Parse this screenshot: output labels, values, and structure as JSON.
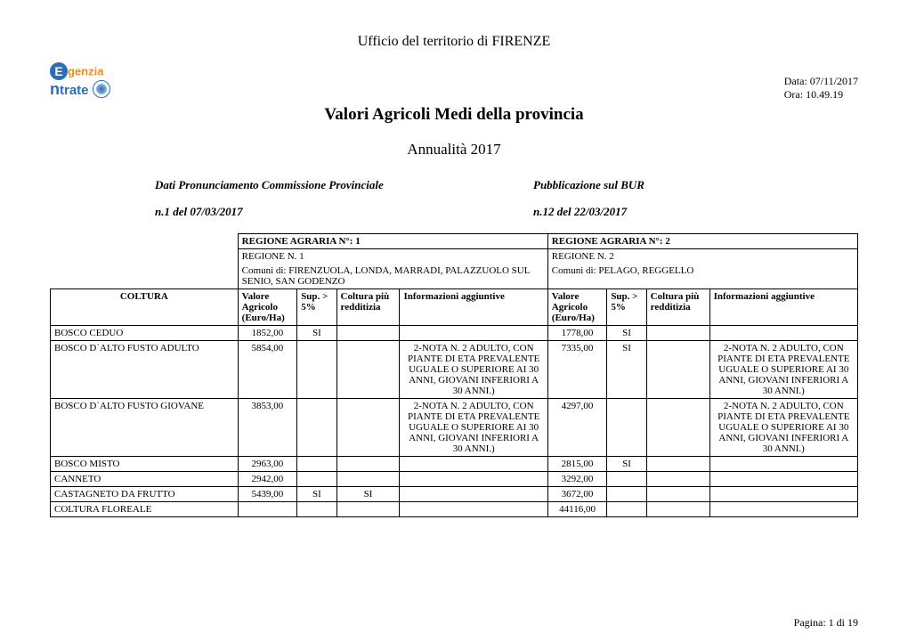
{
  "header": {
    "office": "Ufficio del territorio di  FIRENZE",
    "date_label": "Data: ",
    "date": "07/11/2017",
    "time_label": "Ora: ",
    "time": "10.49.19",
    "title": "Valori Agricoli Medi della provincia",
    "subtitle": "Annualità  2017"
  },
  "logo": {
    "e": "E",
    "line1": "genzia",
    "line2a": "n",
    "line2b": "trate"
  },
  "mid": {
    "left_label": "Dati Pronunciamento Commissione Provinciale",
    "left_value": "n.1 del  07/03/2017",
    "right_label": "Pubblicazione sul BUR",
    "right_value": "n.12  del 22/03/2017"
  },
  "table": {
    "regions": [
      {
        "head": "REGIONE AGRARIA N°:  1",
        "name": "REGIONE N. 1",
        "comuni": "Comuni di: FIRENZUOLA, LONDA, MARRADI, PALAZZUOLO SUL SENIO, SAN GODENZO"
      },
      {
        "head": "REGIONE AGRARIA N°:  2",
        "name": "REGIONE N. 2",
        "comuni": "Comuni di: PELAGO, REGGELLO"
      }
    ],
    "col_headers": {
      "coltura": "COLTURA",
      "valore": "Valore Agricolo (Euro/Ha)",
      "sup": "Sup. > 5%",
      "redd": "Coltura più redditizia",
      "info": "Informazioni aggiuntive"
    },
    "note2": "2-NOTA N. 2 ADULTO, CON PIANTE DI ETA PREVALENTE UGUALE O SUPERIORE AI 30 ANNI, GIOVANI INFERIORI A 30 ANNI.)",
    "rows": [
      {
        "coltura": "BOSCO CEDUO",
        "r1_val": "1852,00",
        "r1_sup": "SI",
        "r1_redd": "",
        "r1_info": "",
        "r2_val": "1778,00",
        "r2_sup": "SI",
        "r2_redd": "",
        "r2_info": ""
      },
      {
        "coltura": "BOSCO D`ALTO FUSTO ADULTO",
        "r1_val": "5854,00",
        "r1_sup": "",
        "r1_redd": "",
        "r1_info": "NOTE2",
        "r2_val": "7335,00",
        "r2_sup": "SI",
        "r2_redd": "",
        "r2_info": "NOTE2"
      },
      {
        "coltura": "BOSCO D`ALTO FUSTO GIOVANE",
        "r1_val": "3853,00",
        "r1_sup": "",
        "r1_redd": "",
        "r1_info": "NOTE2",
        "r2_val": "4297,00",
        "r2_sup": "",
        "r2_redd": "",
        "r2_info": "NOTE2"
      },
      {
        "coltura": "BOSCO MISTO",
        "r1_val": "2963,00",
        "r1_sup": "",
        "r1_redd": "",
        "r1_info": "",
        "r2_val": "2815,00",
        "r2_sup": "SI",
        "r2_redd": "",
        "r2_info": ""
      },
      {
        "coltura": "CANNETO",
        "r1_val": "2942,00",
        "r1_sup": "",
        "r1_redd": "",
        "r1_info": "",
        "r2_val": "3292,00",
        "r2_sup": "",
        "r2_redd": "",
        "r2_info": ""
      },
      {
        "coltura": "CASTAGNETO DA FRUTTO",
        "r1_val": "5439,00",
        "r1_sup": "SI",
        "r1_redd": "SI",
        "r1_info": "",
        "r2_val": "3672,00",
        "r2_sup": "",
        "r2_redd": "",
        "r2_info": ""
      },
      {
        "coltura": "COLTURA FLOREALE",
        "r1_val": "",
        "r1_sup": "",
        "r1_redd": "",
        "r1_info": "",
        "r2_val": "44116,00",
        "r2_sup": "",
        "r2_redd": "",
        "r2_info": ""
      }
    ]
  },
  "footer": {
    "page": "Pagina: 1 di 19"
  }
}
